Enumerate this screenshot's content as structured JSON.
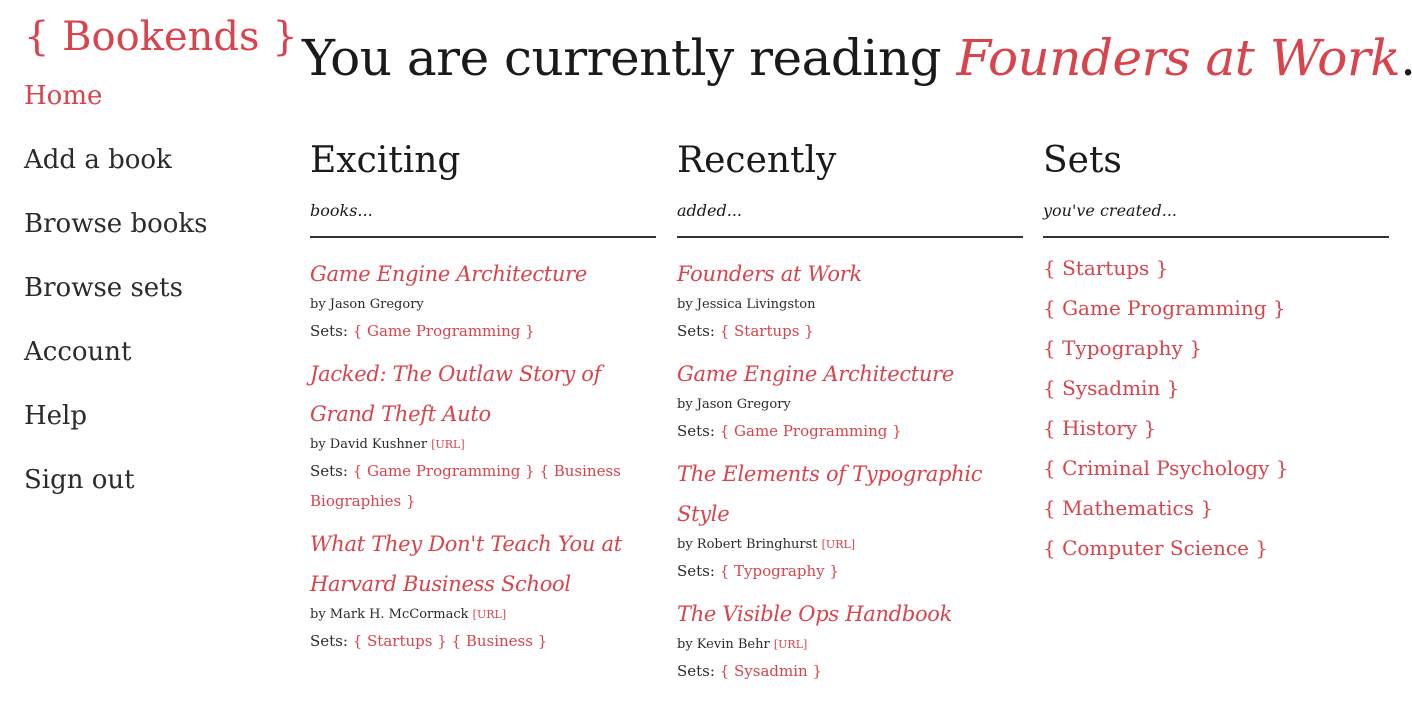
{
  "logo": "{ Bookends }",
  "nav": {
    "items": [
      {
        "label": "Home",
        "active": true
      },
      {
        "label": "Add a book"
      },
      {
        "label": "Browse books"
      },
      {
        "label": "Browse sets"
      },
      {
        "label": "Account"
      },
      {
        "label": "Help"
      },
      {
        "label": "Sign out"
      }
    ]
  },
  "headline": {
    "prefix": "You are currently reading ",
    "book": "Founders at Work",
    "suffix": "."
  },
  "sets_prefix": "Sets:",
  "url_label": "URL",
  "accent_color": "#d9434c",
  "columns": {
    "exciting": {
      "title": "Exciting",
      "subtitle": "books...",
      "books": [
        {
          "title": "Game Engine Architecture",
          "author": "by Jason Gregory",
          "sets": [
            "{ Game Programming }"
          ]
        },
        {
          "title": "Jacked: The Outlaw Story of Grand Theft Auto",
          "author": "by David Kushner",
          "sets": [
            "{ Game Programming }",
            "{ Business Biographies }"
          ]
        },
        {
          "title": "What They Don't Teach You at Harvard Business School",
          "author": "by Mark H. McCormack",
          "sets": [
            "{ Startups }",
            "{ Business }"
          ]
        }
      ]
    },
    "recent": {
      "title": "Recently",
      "subtitle": "added...",
      "books": [
        {
          "title": "Founders at Work",
          "author": "by Jessica Livingston",
          "sets": [
            "{ Startups }"
          ]
        },
        {
          "title": "Game Engine Architecture",
          "author": "by Jason Gregory",
          "sets": [
            "{ Game Programming }"
          ]
        },
        {
          "title": "The Elements of Typographic Style",
          "author": "by Robert Bringhurst",
          "sets": [
            "{ Typography }"
          ]
        },
        {
          "title": "The Visible Ops Handbook",
          "author": "by Kevin Behr",
          "sets": [
            "{ Sysadmin }"
          ]
        }
      ]
    },
    "sets": {
      "title": "Sets",
      "subtitle": "you've created...",
      "items": [
        "{ Startups }",
        "{ Game Programming }",
        "{ Typography }",
        "{ Sysadmin }",
        "{ History }",
        "{ Criminal Psychology }",
        "{ Mathematics }",
        "{ Computer Science }"
      ]
    }
  }
}
